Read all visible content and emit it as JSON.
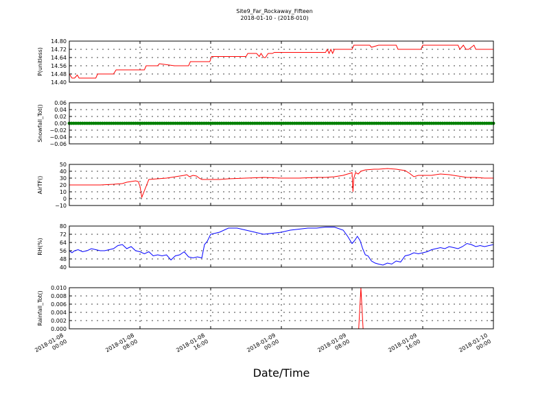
{
  "chart_data": {
    "type": "line",
    "title_lines": [
      "Site9_Far_Rockaway_Fifteen",
      "2018-01-10 - (2018-010)"
    ],
    "xlabel": "Date/Time",
    "x_ticks": [
      {
        "h": 0,
        "line1": "2018-01-08",
        "line2": "00:00"
      },
      {
        "h": 8,
        "line1": "2018-01-08",
        "line2": "08:00"
      },
      {
        "h": 16,
        "line1": "2018-01-08",
        "line2": "16:00"
      },
      {
        "h": 24,
        "line1": "2018-01-09",
        "line2": "00:00"
      },
      {
        "h": 32,
        "line1": "2018-01-09",
        "line2": "08:00"
      },
      {
        "h": 40,
        "line1": "2018-01-09",
        "line2": "16:00"
      },
      {
        "h": 48,
        "line1": "2018-01-10",
        "line2": "00:00"
      }
    ],
    "xlim_hours": [
      0,
      48
    ],
    "panels": [
      {
        "ylabel": "P(unitless)",
        "ylim": [
          14.4,
          14.8
        ],
        "yticks": [
          14.4,
          14.48,
          14.56,
          14.64,
          14.72,
          14.8
        ],
        "ytick_labels": [
          "14.40",
          "14.48",
          "14.56",
          "14.64",
          "14.72",
          "14.80"
        ],
        "color": "#ff0000",
        "style": "line",
        "x": [
          0,
          0.3,
          0.6,
          0.9,
          1.1,
          3.0,
          3.2,
          5.0,
          5.3,
          8.5,
          8.7,
          10.0,
          10.2,
          11.9,
          12.1,
          13.5,
          13.7,
          15.9,
          16.1,
          20.0,
          20.2,
          21.2,
          21.5,
          21.7,
          22.0,
          22.2,
          22.5,
          23.0,
          23.2,
          29.0,
          29.2,
          29.4,
          29.6,
          29.8,
          30.0,
          32.0,
          32.2,
          34.0,
          34.2,
          35.0,
          35.3,
          37.0,
          37.2,
          39.6,
          39.8,
          40.0,
          40.3,
          44.0,
          44.2,
          44.6,
          44.9,
          45.2,
          45.8,
          46.0,
          46.3,
          48.0
        ],
        "y": [
          14.48,
          14.44,
          14.44,
          14.47,
          14.44,
          14.44,
          14.48,
          14.48,
          14.52,
          14.52,
          14.56,
          14.56,
          14.58,
          14.56,
          14.56,
          14.56,
          14.6,
          14.6,
          14.65,
          14.65,
          14.68,
          14.68,
          14.65,
          14.68,
          14.64,
          14.64,
          14.68,
          14.68,
          14.69,
          14.69,
          14.72,
          14.68,
          14.72,
          14.68,
          14.72,
          14.72,
          14.76,
          14.76,
          14.74,
          14.76,
          14.76,
          14.76,
          14.72,
          14.72,
          14.72,
          14.76,
          14.76,
          14.76,
          14.72,
          14.76,
          14.72,
          14.72,
          14.76,
          14.72,
          14.72,
          14.72
        ]
      },
      {
        "ylabel": "Snowfall_Tot()",
        "ylim": [
          -0.06,
          0.06
        ],
        "yticks": [
          -0.06,
          -0.04,
          -0.02,
          0.0,
          0.02,
          0.04,
          0.06
        ],
        "ytick_labels": [
          "−0.06",
          "−0.04",
          "−0.02",
          "0.00",
          "0.02",
          "0.04",
          "0.06"
        ],
        "color": "#008000",
        "style": "markers",
        "x_start": 0,
        "x_end": 48,
        "x_step": 0.25,
        "constant_value": 0.0
      },
      {
        "ylabel": "AirTF()",
        "ylim": [
          -10,
          50
        ],
        "yticks": [
          -10,
          0,
          10,
          20,
          30,
          40,
          50
        ],
        "ytick_labels": [
          "−10",
          "0",
          "10",
          "20",
          "30",
          "40",
          "50"
        ],
        "color": "#ff0000",
        "style": "line",
        "x": [
          0,
          2.0,
          3.5,
          5.0,
          6.0,
          6.5,
          7.5,
          7.8,
          8.0,
          8.2,
          9.0,
          10.0,
          11.0,
          12.0,
          12.5,
          13.0,
          13.3,
          13.6,
          14.0,
          14.4,
          14.7,
          15.0,
          17.0,
          18.0,
          20.0,
          22.0,
          24.0,
          25.0,
          26.0,
          28.0,
          29.0,
          30.0,
          31.0,
          31.5,
          31.8,
          32.0,
          32.1,
          32.2,
          32.4,
          32.7,
          33.0,
          33.5,
          34.5,
          35.0,
          36.0,
          37.0,
          38.0,
          38.5,
          39.0,
          39.5,
          40.0,
          41.0,
          42.0,
          43.0,
          44.0,
          45.0,
          46.0,
          47.0,
          48.0
        ],
        "y": [
          20,
          20,
          20,
          21,
          22,
          24,
          26,
          25,
          18,
          2,
          28,
          29,
          30,
          32,
          33,
          34,
          35,
          32,
          34,
          33,
          30,
          28,
          28,
          29,
          30,
          31,
          30,
          30,
          30,
          31,
          31,
          32,
          34,
          36,
          37,
          38,
          10,
          30,
          38,
          36,
          40,
          42,
          43,
          43,
          44,
          43,
          41,
          37,
          32,
          34,
          34,
          34,
          36,
          35,
          33,
          31,
          31,
          30,
          30
        ]
      },
      {
        "ylabel": "RH(%)",
        "ylim": [
          40,
          80
        ],
        "yticks": [
          40,
          48,
          56,
          64,
          72,
          80
        ],
        "ytick_labels": [
          "40",
          "48",
          "56",
          "64",
          "72",
          "80"
        ],
        "color": "#0000ff",
        "style": "line",
        "x": [
          0,
          0.3,
          0.6,
          1.0,
          1.5,
          2.0,
          2.5,
          3.0,
          3.5,
          4.0,
          4.5,
          5.0,
          5.5,
          6.0,
          6.5,
          7.0,
          7.5,
          8.0,
          8.5,
          9.0,
          9.5,
          10.0,
          10.5,
          11.0,
          11.5,
          12.0,
          12.5,
          13.0,
          13.5,
          14.0,
          14.5,
          15.0,
          15.3,
          15.6,
          16.0,
          17.0,
          18.0,
          19.0,
          20.0,
          21.0,
          22.0,
          23.0,
          24.0,
          25.0,
          26.0,
          27.0,
          28.0,
          29.0,
          30.0,
          31.0,
          31.5,
          32.0,
          32.3,
          32.6,
          32.9,
          33.2,
          33.5,
          33.8,
          34.2,
          34.6,
          35.0,
          35.5,
          36.0,
          36.5,
          37.0,
          37.5,
          38.0,
          38.5,
          39.0,
          39.5,
          40.0,
          40.5,
          41.0,
          41.5,
          42.0,
          42.5,
          43.0,
          43.5,
          44.0,
          44.5,
          45.0,
          45.5,
          46.0,
          46.5,
          47.0,
          47.5,
          48.0
        ],
        "y": [
          56,
          54,
          56,
          57,
          55,
          56,
          58,
          57,
          56,
          56,
          57,
          58,
          61,
          62,
          58,
          60,
          56,
          55,
          53,
          55,
          51,
          52,
          51,
          52,
          47,
          51,
          52,
          55,
          50,
          49,
          50,
          49,
          62,
          65,
          72,
          74,
          78,
          78,
          76,
          74,
          72,
          73,
          74,
          76,
          77,
          78,
          78,
          79,
          79,
          76,
          70,
          63,
          66,
          70,
          66,
          58,
          52,
          51,
          46,
          44,
          43,
          42,
          44,
          43,
          46,
          45,
          51,
          52,
          54,
          53,
          54,
          55,
          57,
          58,
          59,
          58,
          60,
          59,
          58,
          60,
          63,
          62,
          60,
          61,
          60,
          61,
          62
        ]
      },
      {
        "ylabel": "Rainfall_Tot()",
        "ylim": [
          0.0,
          0.01
        ],
        "yticks": [
          0.0,
          0.002,
          0.004,
          0.006,
          0.008,
          0.01
        ],
        "ytick_labels": [
          "0.000",
          "0.002",
          "0.004",
          "0.006",
          "0.008",
          "0.010"
        ],
        "color": "#ff0000",
        "style": "line",
        "x": [
          0,
          32.75,
          33.0,
          33.25,
          48.0
        ],
        "y": [
          0,
          0,
          0.01,
          0,
          0
        ]
      }
    ]
  }
}
